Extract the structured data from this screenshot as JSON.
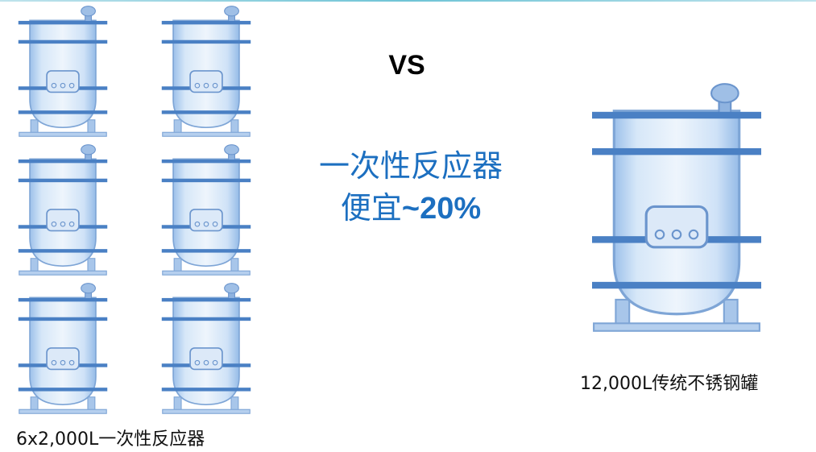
{
  "vs_label": "VS",
  "claim": {
    "line1": "一次性反应器",
    "line2_prefix": "便宜",
    "line2_value": "~20%"
  },
  "left_caption": "6x2,000L一次性反应器",
  "right_caption": "12,000L传统不锈钢罐",
  "colors": {
    "accent_text": "#1c6fc0",
    "tank_band": "#4a80c4",
    "tank_body": "#cfe2f7"
  },
  "icons": {
    "small_tank": "single-use-bioreactor-icon",
    "large_tank": "stainless-steel-tank-icon"
  }
}
